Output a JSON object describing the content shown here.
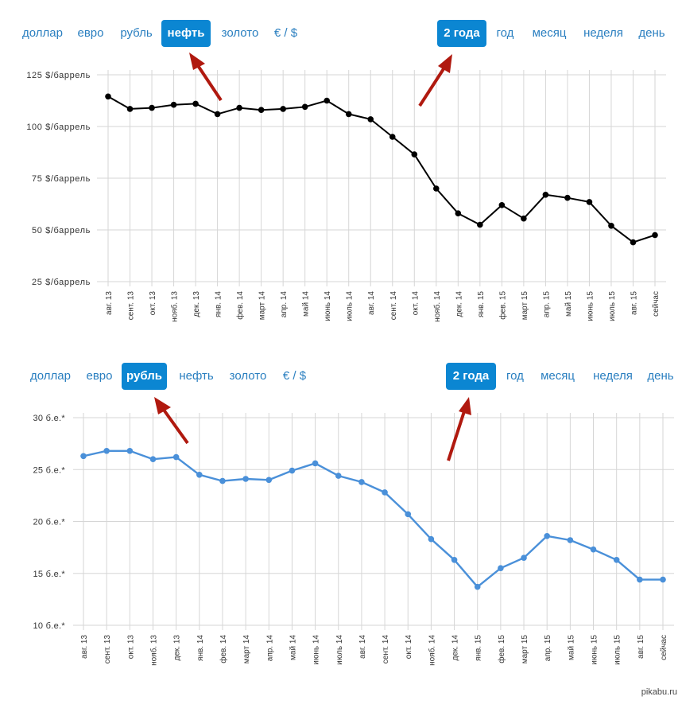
{
  "chart_data": [
    {
      "type": "line",
      "tabs_left": [
        "доллар",
        "евро",
        "рубль",
        "нефть",
        "золото",
        "€ / $"
      ],
      "active_left": "нефть",
      "tabs_right": [
        "2 года",
        "год",
        "месяц",
        "неделя",
        "день"
      ],
      "active_right": "2 года",
      "ytick_labels": [
        "125 $/баррель",
        "100 $/баррель",
        "75 $/баррель",
        "50 $/баррель",
        "25 $/баррель"
      ],
      "yticks": [
        125,
        100,
        75,
        50,
        25
      ],
      "ylim": [
        25,
        125
      ],
      "categories": [
        "авг. 13",
        "сент. 13",
        "окт. 13",
        "нояб. 13",
        "дек. 13",
        "янв. 14",
        "фев. 14",
        "март 14",
        "апр. 14",
        "май 14",
        "июнь 14",
        "июль 14",
        "авг. 14",
        "сент. 14",
        "окт. 14",
        "нояб. 14",
        "дек. 14",
        "янв. 15",
        "фев. 15",
        "март 15",
        "апр. 15",
        "май 15",
        "июнь 15",
        "июль 15",
        "авг. 15",
        "сейчас"
      ],
      "values": [
        114.5,
        108.5,
        109,
        110.5,
        111,
        106,
        109,
        108,
        108.5,
        109.5,
        112.5,
        106,
        103.5,
        95,
        86.5,
        70,
        58,
        52.5,
        62,
        55.5,
        67,
        65.5,
        63.5,
        52,
        44,
        47.5
      ],
      "color": "#000000",
      "grid": true
    },
    {
      "type": "line",
      "tabs_left": [
        "доллар",
        "евро",
        "рубль",
        "нефть",
        "золото",
        "€ / $"
      ],
      "active_left": "рубль",
      "tabs_right": [
        "2 года",
        "год",
        "месяц",
        "неделя",
        "день"
      ],
      "active_right": "2 года",
      "ytick_labels": [
        "30 б.е.*",
        "25 б.е.*",
        "20 б.е.*",
        "15 б.е.*",
        "10 б.е.*"
      ],
      "yticks": [
        30,
        25,
        20,
        15,
        10
      ],
      "ylim": [
        10,
        30
      ],
      "categories": [
        "авг. 13",
        "сент. 13",
        "окт. 13",
        "нояб. 13",
        "дек. 13",
        "янв. 14",
        "фев. 14",
        "март 14",
        "апр. 14",
        "май 14",
        "июнь 14",
        "июль 14",
        "авг. 14",
        "сент. 14",
        "окт. 14",
        "нояб. 14",
        "дек. 14",
        "янв. 15",
        "фев. 15",
        "март 15",
        "апр. 15",
        "май 15",
        "июнь 15",
        "июль 15",
        "авг. 15",
        "сейчас"
      ],
      "values": [
        26.3,
        26.8,
        26.8,
        26,
        26.2,
        24.5,
        23.9,
        24.1,
        24,
        24.9,
        25.6,
        24.4,
        23.8,
        22.8,
        20.7,
        18.3,
        16.3,
        13.7,
        15.5,
        16.5,
        18.6,
        18.2,
        17.3,
        16.3,
        14.4,
        14.4
      ],
      "color": "#4a90d9",
      "grid": true
    }
  ],
  "watermark": "pikabu.ru",
  "colors": {
    "tab_text": "#2a7fc0",
    "tab_active_bg": "#0b86d2",
    "arrow": "#b0190f",
    "grid": "#d6d6d6"
  }
}
